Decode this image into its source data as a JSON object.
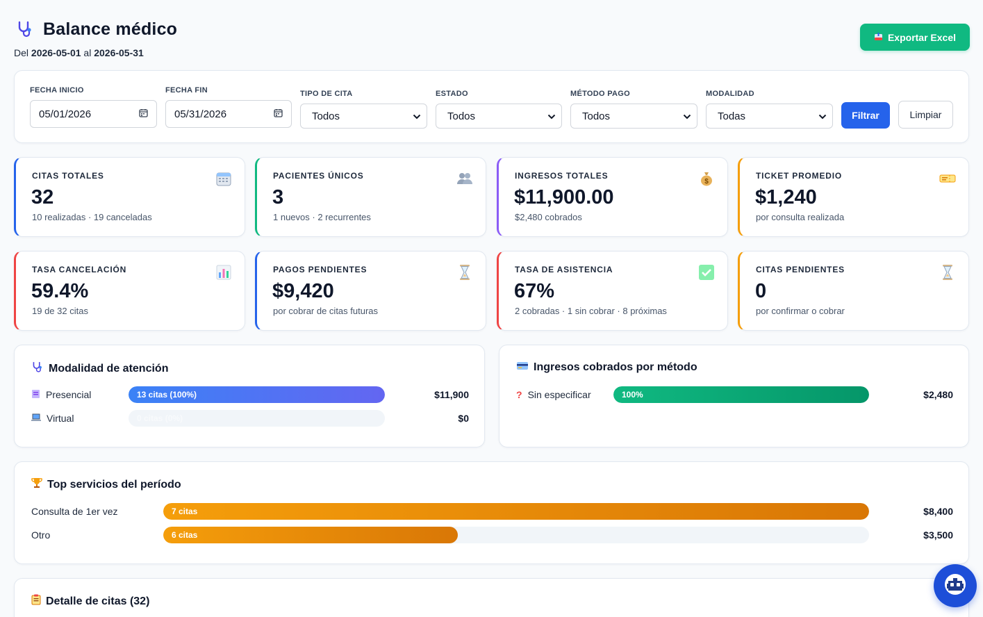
{
  "header": {
    "title": "Balance médico",
    "icon": "stethoscope-icon",
    "range_prefix": "Del",
    "range_start": "2026-05-01",
    "range_mid": "al",
    "range_end": "2026-05-31",
    "export_label": "Exportar Excel",
    "export_color": "#10b981"
  },
  "filters": {
    "fecha_inicio": {
      "label": "FECHA INICIO",
      "value": "05/01/2026"
    },
    "fecha_fin": {
      "label": "FECHA FIN",
      "value": "05/31/2026"
    },
    "tipo_cita": {
      "label": "TIPO DE CITA",
      "value": "Todos"
    },
    "estado": {
      "label": "ESTADO",
      "value": "Todos"
    },
    "metodo_pago": {
      "label": "MÉTODO PAGO",
      "value": "Todos"
    },
    "modalidad": {
      "label": "MODALIDAD",
      "value": "Todas"
    },
    "filtrar_label": "Filtrar",
    "limpiar_label": "Limpiar"
  },
  "kpis": [
    {
      "label": "CITAS TOTALES",
      "value": "32",
      "sub": "10 realizadas · 19 canceladas",
      "icon": "calendar-icon",
      "accent": "#2563eb"
    },
    {
      "label": "PACIENTES ÚNICOS",
      "value": "3",
      "sub": "1 nuevos · 2 recurrentes",
      "icon": "users-icon",
      "accent": "#10b981"
    },
    {
      "label": "INGRESOS TOTALES",
      "value": "$11,900.00",
      "sub": "$2,480 cobrados",
      "icon": "money-bag-icon",
      "accent": "#8b5cf6"
    },
    {
      "label": "TICKET PROMEDIO",
      "value": "$1,240",
      "sub": "por consulta realizada",
      "icon": "ticket-icon",
      "accent": "#f59e0b"
    },
    {
      "label": "TASA CANCELACIÓN",
      "value": "59.4%",
      "sub": "19 de 32 citas",
      "icon": "bar-chart-icon",
      "accent": "#ef4444"
    },
    {
      "label": "PAGOS PENDIENTES",
      "value": "$9,420",
      "sub": "por cobrar de citas futuras",
      "icon": "hourglass-icon",
      "accent": "#2563eb"
    },
    {
      "label": "TASA DE ASISTENCIA",
      "value": "67%",
      "sub": "2 cobradas · 1 sin cobrar · 8 próximas",
      "icon": "check-box-icon",
      "accent": "#ef4444"
    },
    {
      "label": "CITAS PENDIENTES",
      "value": "0",
      "sub": "por confirmar o cobrar",
      "icon": "hourglass-icon",
      "accent": "#f59e0b"
    }
  ],
  "modalidad": {
    "title": "Modalidad de atención",
    "rows": [
      {
        "label": "Presencial",
        "icon": "clipboard-icon",
        "bar_text": "13 citas (100%)",
        "fraction": 1.0,
        "amount": "$11,900"
      },
      {
        "label": "Virtual",
        "icon": "laptop-icon",
        "bar_text": "0 citas (0%)",
        "fraction": 0.0,
        "amount": "$0"
      }
    ]
  },
  "metodo": {
    "title": "Ingresos cobrados por método",
    "rows": [
      {
        "label": "Sin especificar",
        "icon": "question-icon",
        "bar_text": "100%",
        "fraction": 1.0,
        "amount": "$2,480"
      }
    ]
  },
  "top": {
    "title": "Top servicios del período",
    "rows": [
      {
        "label": "Consulta de 1er vez",
        "bar_text": "7 citas",
        "fraction": 1.0,
        "amount": "$8,400"
      },
      {
        "label": "Otro",
        "bar_text": "6 citas",
        "fraction": 0.417,
        "amount": "$3,500"
      }
    ]
  },
  "detalle": {
    "title": "Detalle de citas (32)"
  }
}
